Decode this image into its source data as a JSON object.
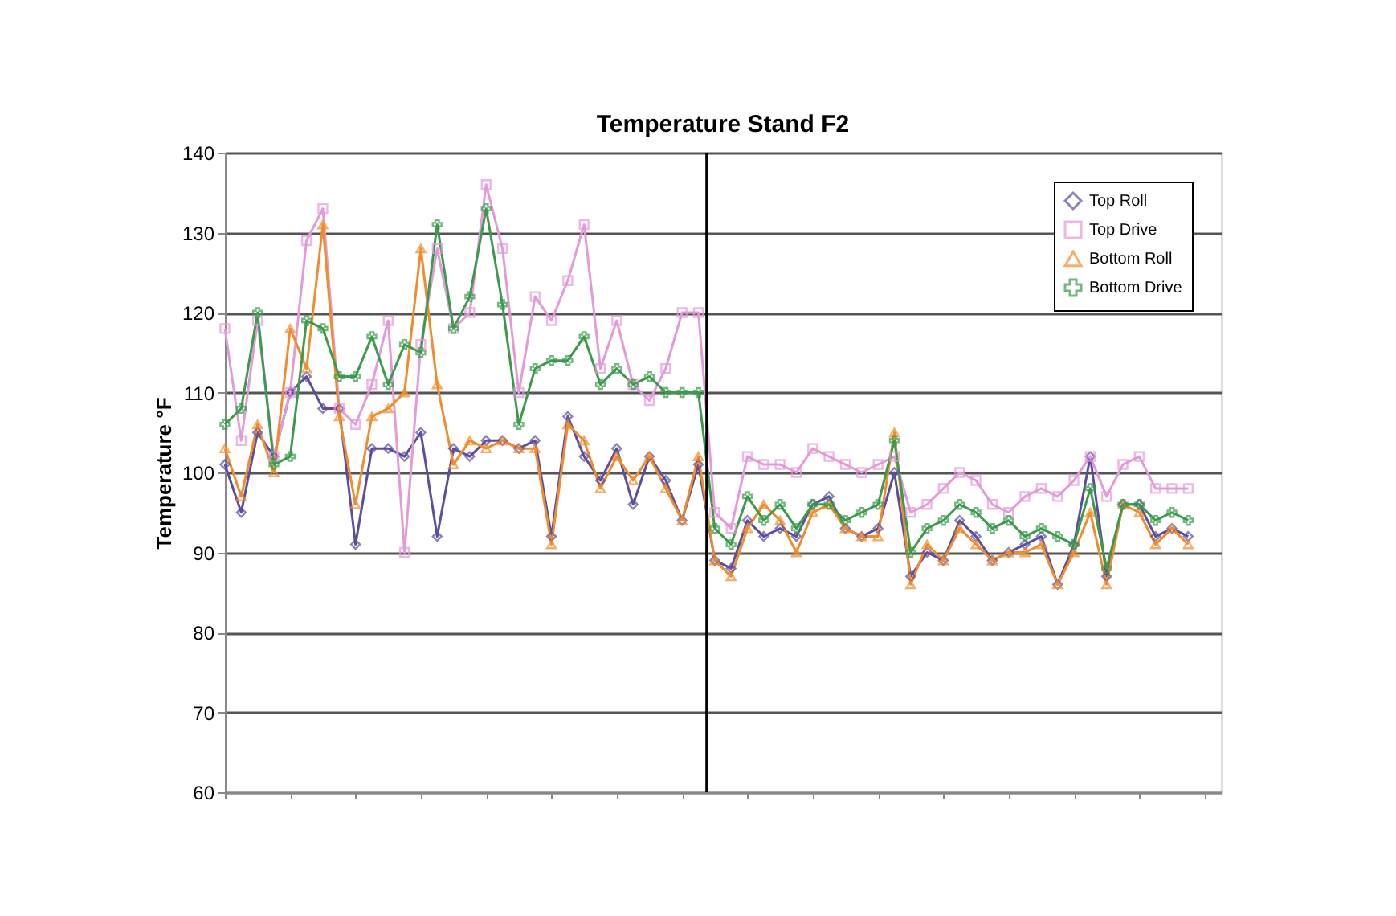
{
  "chart_data": {
    "type": "line",
    "title": "Temperature Stand F2",
    "ylabel": "Temperature °F",
    "categories": [
      null,
      null,
      null,
      null,
      null,
      null,
      null,
      null,
      null,
      null,
      null,
      null,
      null,
      null,
      null,
      null,
      null,
      null,
      null,
      null,
      null,
      null,
      null,
      null,
      null,
      null,
      null,
      null,
      null,
      null,
      null,
      null,
      null,
      null,
      null,
      null,
      null,
      null,
      null,
      null,
      null,
      null,
      null,
      null,
      null,
      null,
      null,
      null,
      null,
      null,
      null,
      null,
      null,
      null,
      null,
      null,
      null,
      null,
      null,
      null
    ],
    "ylim": [
      60,
      140
    ],
    "yticks": [
      60,
      70,
      80,
      90,
      100,
      110,
      120,
      130,
      140
    ],
    "grid": "y",
    "legend": "top right",
    "tick_labels": "y",
    "line_style": "solid",
    "series": [
      {
        "name": "Top Roll",
        "color": "#5b4ea0",
        "marker": "diamond",
        "values": [
          101,
          95,
          105,
          102,
          110,
          112,
          108,
          108,
          91,
          103,
          103,
          102,
          105,
          92,
          103,
          102,
          104,
          104,
          103,
          104,
          92,
          107,
          102,
          99,
          103,
          96,
          102,
          99,
          94,
          101,
          89,
          88,
          94,
          92,
          93,
          92,
          96,
          97,
          93,
          92,
          93,
          100,
          87,
          90,
          89,
          94,
          92,
          89,
          90,
          91,
          92,
          86,
          91,
          102,
          87,
          96,
          96,
          92,
          93,
          92
        ]
      },
      {
        "name": "Top Drive",
        "color": "#e49ad8",
        "marker": "square",
        "values": [
          118,
          104,
          119,
          102,
          110,
          129,
          133,
          108,
          106,
          111,
          119,
          90,
          116,
          128,
          118,
          120,
          136,
          128,
          110,
          122,
          119,
          124,
          131,
          113,
          119,
          111,
          109,
          113,
          120,
          120,
          95,
          93,
          102,
          101,
          101,
          100,
          103,
          102,
          101,
          100,
          101,
          102,
          95,
          96,
          98,
          100,
          99,
          96,
          95,
          97,
          98,
          97,
          99,
          102,
          97,
          101,
          102,
          98,
          98,
          98
        ]
      },
      {
        "name": "Bottom Roll",
        "color": "#f08c2c",
        "marker": "triangle",
        "values": [
          103,
          97,
          106,
          100,
          118,
          113,
          131,
          107,
          96,
          107,
          108,
          110,
          128,
          111,
          101,
          104,
          103,
          104,
          103,
          103,
          91,
          106,
          104,
          98,
          102,
          99,
          102,
          98,
          94,
          102,
          89,
          87,
          93,
          96,
          94,
          90,
          95,
          96,
          93,
          92,
          92,
          105,
          86,
          91,
          89,
          93,
          91,
          89,
          90,
          90,
          91,
          86,
          90,
          95,
          86,
          96,
          95,
          91,
          93,
          91
        ]
      },
      {
        "name": "Bottom Drive",
        "color": "#3c9a4c",
        "marker": "cross",
        "values": [
          106,
          108,
          120,
          101,
          102,
          119,
          118,
          112,
          112,
          117,
          111,
          116,
          115,
          131,
          118,
          122,
          133,
          121,
          106,
          113,
          114,
          114,
          117,
          111,
          113,
          111,
          112,
          110,
          110,
          110,
          93,
          91,
          97,
          94,
          96,
          93,
          96,
          96,
          94,
          95,
          96,
          104,
          90,
          93,
          94,
          96,
          95,
          93,
          94,
          92,
          93,
          92,
          91,
          98,
          88,
          96,
          96,
          94,
          95,
          94
        ]
      }
    ]
  }
}
